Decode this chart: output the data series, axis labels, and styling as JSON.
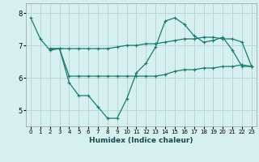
{
  "xlabel": "Humidex (Indice chaleur)",
  "bg_color": "#d6efef",
  "grid_color": "#b8d8d8",
  "line_color": "#1a7a6e",
  "xlim": [
    -0.5,
    23.5
  ],
  "ylim": [
    4.5,
    8.3
  ],
  "yticks": [
    5,
    6,
    7,
    8
  ],
  "xticks": [
    0,
    1,
    2,
    3,
    4,
    5,
    6,
    7,
    8,
    9,
    10,
    11,
    12,
    13,
    14,
    15,
    16,
    17,
    18,
    19,
    20,
    21,
    22,
    23
  ],
  "series1_x": [
    0,
    1,
    2,
    3,
    4,
    5,
    6,
    7,
    8,
    9,
    10,
    11,
    12,
    13,
    14,
    15,
    16,
    17,
    18,
    19,
    20,
    21,
    22,
    23
  ],
  "series1_y": [
    7.85,
    7.2,
    6.85,
    6.9,
    5.85,
    5.45,
    5.45,
    5.1,
    4.75,
    4.75,
    5.35,
    6.15,
    6.45,
    6.95,
    7.75,
    7.85,
    7.65,
    7.3,
    7.1,
    7.15,
    7.25,
    6.85,
    6.35,
    6.35
  ],
  "series2_x": [
    2,
    3,
    4,
    5,
    6,
    7,
    8,
    9,
    10,
    11,
    12,
    13,
    14,
    15,
    16,
    17,
    18,
    19,
    20,
    21,
    22,
    23
  ],
  "series2_y": [
    6.9,
    6.9,
    6.05,
    6.05,
    6.05,
    6.05,
    6.05,
    6.05,
    6.05,
    6.05,
    6.05,
    6.05,
    6.1,
    6.2,
    6.25,
    6.25,
    6.3,
    6.3,
    6.35,
    6.35,
    6.4,
    6.35
  ],
  "series3_x": [
    2,
    3,
    4,
    5,
    6,
    7,
    8,
    9,
    10,
    11,
    12,
    13,
    14,
    15,
    16,
    17,
    18,
    19,
    20,
    21,
    22,
    23
  ],
  "series3_y": [
    6.9,
    6.9,
    6.9,
    6.9,
    6.9,
    6.9,
    6.9,
    6.95,
    7.0,
    7.0,
    7.05,
    7.05,
    7.1,
    7.15,
    7.2,
    7.2,
    7.25,
    7.25,
    7.2,
    7.2,
    7.1,
    6.35
  ]
}
